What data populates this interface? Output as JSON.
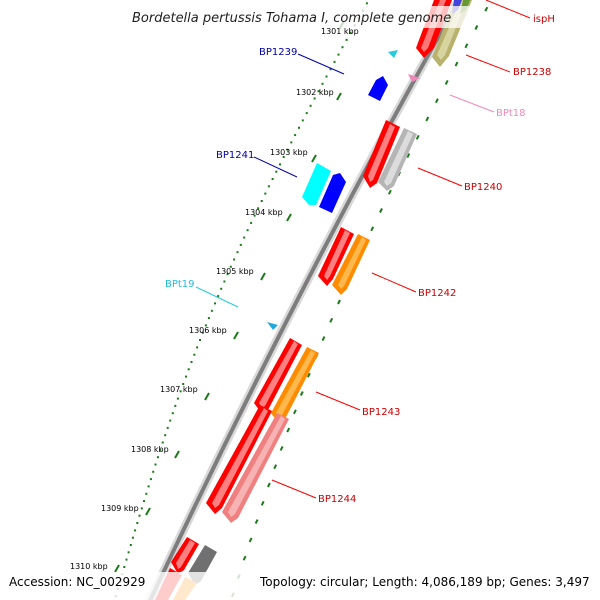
{
  "title": "Bordetella pertussis Tohama I, complete genome",
  "footer": {
    "accession": "Accession: NC_002929",
    "summary": "Topology: circular; Length: 4,086,189 bp; Genes: 3,497"
  },
  "kbp_labels": [
    "1301 kbp",
    "1302 kbp",
    "1303 kbp",
    "1304 kbp",
    "1305 kbp",
    "1306 kbp",
    "1307 kbp",
    "1308 kbp",
    "1309 kbp",
    "1310 kbp"
  ],
  "genes": [
    {
      "id": "ispH",
      "label": "ispH",
      "strand": "forward",
      "color": "#cc0000"
    },
    {
      "id": "BP1238",
      "label": "BP1238",
      "strand": "forward",
      "color": "#cc0000"
    },
    {
      "id": "BP1239",
      "label": "BP1239",
      "strand": "reverse",
      "color": "#0000aa"
    },
    {
      "id": "BPt18",
      "label": "BPt18",
      "strand": "forward",
      "color": "#ee88bb"
    },
    {
      "id": "BP1240",
      "label": "BP1240",
      "strand": "forward",
      "color": "#cc0000"
    },
    {
      "id": "BP1241",
      "label": "BP1241",
      "strand": "reverse",
      "color": "#0000aa"
    },
    {
      "id": "BP1242",
      "label": "BP1242",
      "strand": "forward",
      "color": "#cc0000"
    },
    {
      "id": "BPt19",
      "label": "BPt19",
      "strand": "reverse",
      "color": "#22aadd"
    },
    {
      "id": "BP1243",
      "label": "BP1243",
      "strand": "forward",
      "color": "#cc0000"
    },
    {
      "id": "BP1244",
      "label": "BP1244",
      "strand": "forward",
      "color": "#cc0000"
    }
  ],
  "colors": {
    "backbone": "#8a8a8a",
    "forward_cds": "#ff0000",
    "reverse_cds": "#0000ff",
    "trna_forward": "#ee88bb",
    "trna_reverse": "#22ccdd",
    "tick": "#1a7a1a"
  }
}
